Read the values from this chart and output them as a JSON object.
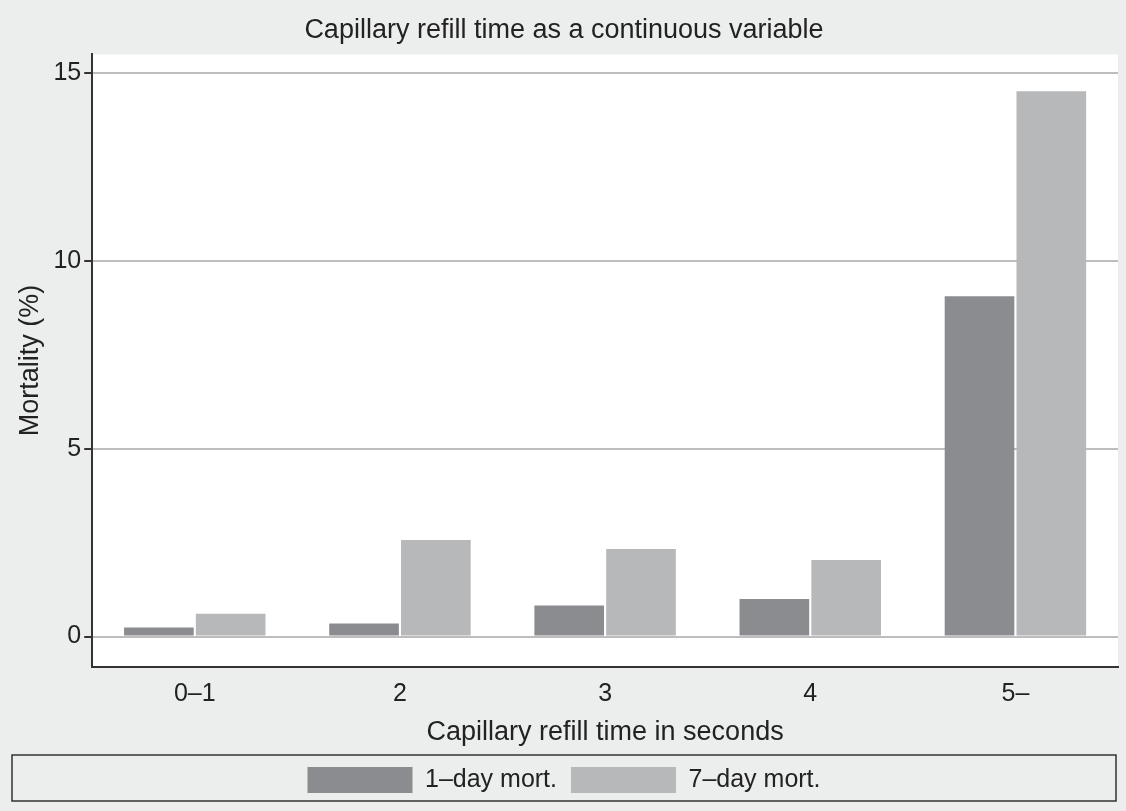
{
  "chart_data": {
    "type": "bar",
    "title": "Capillary refill time as a continuous variable",
    "xlabel": "Capillary refill time in seconds",
    "ylabel": "Mortality (%)",
    "categories": [
      "0–1",
      "2",
      "3",
      "4",
      "5–"
    ],
    "series": [
      {
        "name": "1–day mort.",
        "color": "#8a8c8f",
        "values": [
          0.24,
          0.35,
          0.83,
          1.0,
          9.06
        ]
      },
      {
        "name": "7–day mort.",
        "color": "#b6b8ba",
        "values": [
          0.61,
          2.57,
          2.33,
          2.04,
          14.52
        ]
      }
    ],
    "ylim": [
      -0.8,
      15.5
    ],
    "yticks": [
      0,
      5,
      10,
      15
    ],
    "grid": "y",
    "legend": "bottom"
  }
}
